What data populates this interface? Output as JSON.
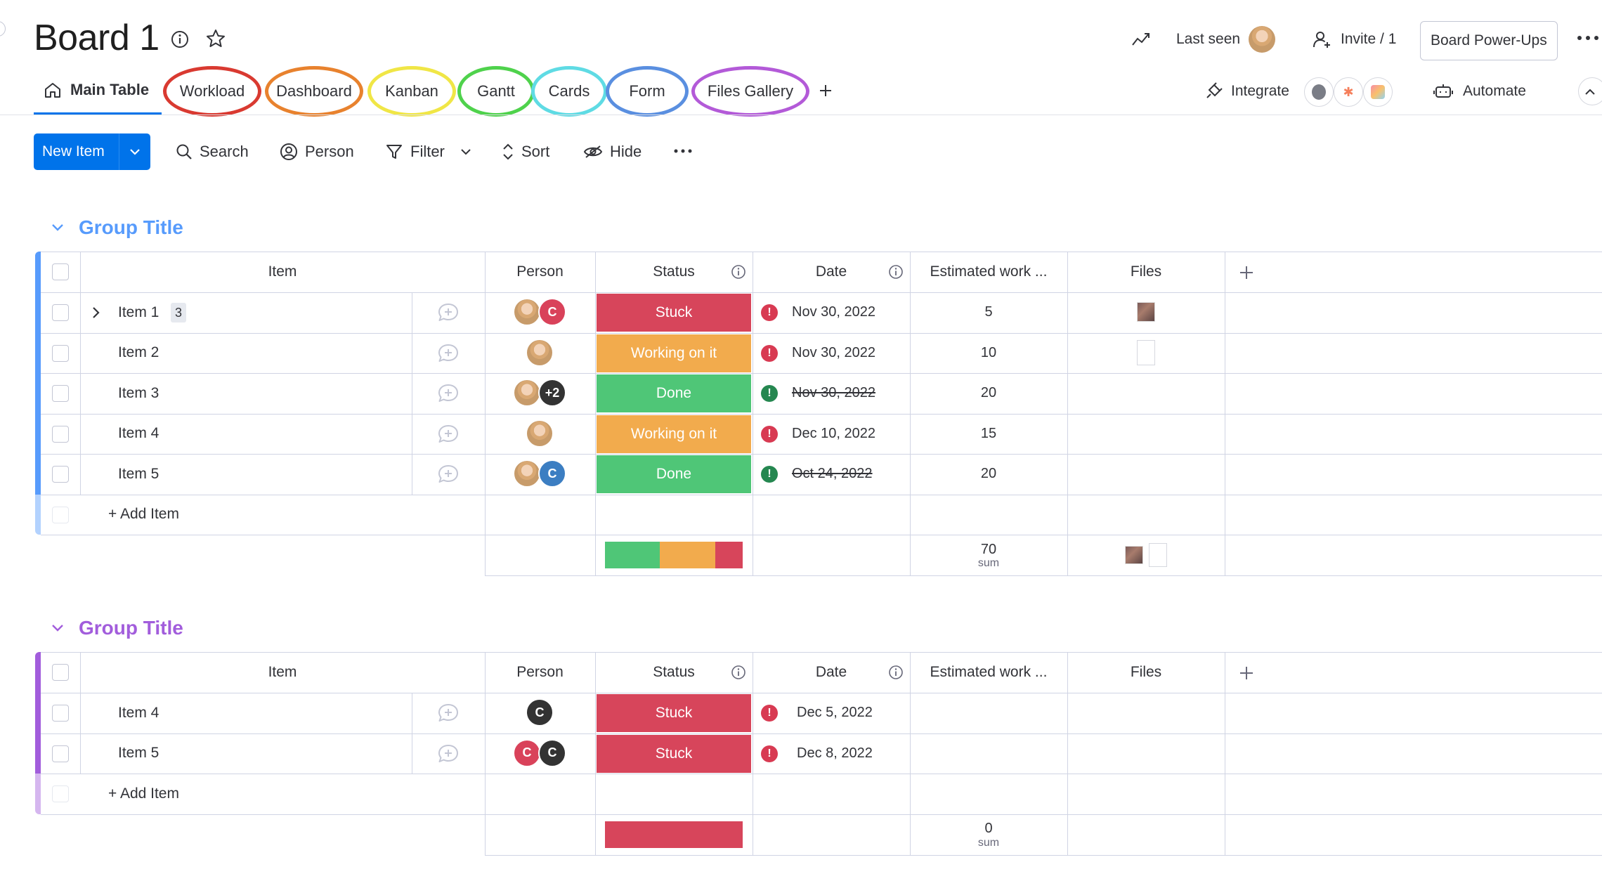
{
  "header": {
    "title": "Board 1",
    "last_seen_label": "Last seen",
    "invite_label": "Invite / 1",
    "power_ups_label": "Board Power-Ups",
    "integrate_label": "Integrate",
    "automate_label": "Automate"
  },
  "tabs": [
    {
      "label": "Main Table",
      "ring": ""
    },
    {
      "label": "Workload",
      "ring": "#d93a31"
    },
    {
      "label": "Dashboard",
      "ring": "#e8822e"
    },
    {
      "label": "Kanban",
      "ring": "#f0e646"
    },
    {
      "label": "Gantt",
      "ring": "#4fd24c"
    },
    {
      "label": "Cards",
      "ring": "#5fdbe4"
    },
    {
      "label": "Form",
      "ring": "#5a8fe0"
    },
    {
      "label": "Files Gallery",
      "ring": "#b35ad8"
    }
  ],
  "toolbar": {
    "new_item_label": "New Item",
    "search_label": "Search",
    "person_label": "Person",
    "filter_label": "Filter",
    "sort_label": "Sort",
    "hide_label": "Hide"
  },
  "columns": {
    "item": "Item",
    "person": "Person",
    "status": "Status",
    "date": "Date",
    "estimated": "Estimated work ...",
    "files": "Files"
  },
  "groups": [
    {
      "title": "Group Title",
      "color": "#579bfc",
      "add_item_label": "+ Add Item",
      "rows": [
        {
          "name": "Item 1",
          "subitems": "3",
          "avatars": [
            {
              "type": "photo",
              "text": ""
            },
            {
              "type": "red",
              "text": "C"
            }
          ],
          "status": "Stuck",
          "status_type": "stuck",
          "date": "Nov 30, 2022",
          "date_icon": "red",
          "date_strike": false,
          "estimate": "5",
          "files": [
            "photo"
          ]
        },
        {
          "name": "Item 2",
          "subitems": "",
          "avatars": [
            {
              "type": "photo",
              "text": ""
            }
          ],
          "status": "Working on it",
          "status_type": "working",
          "date": "Nov 30, 2022",
          "date_icon": "red",
          "date_strike": false,
          "estimate": "10",
          "files": [
            "blank"
          ]
        },
        {
          "name": "Item 3",
          "subitems": "",
          "avatars": [
            {
              "type": "photo",
              "text": ""
            },
            {
              "type": "dark",
              "text": "+2"
            }
          ],
          "status": "Done",
          "status_type": "done",
          "date": "Nov 30, 2022",
          "date_icon": "green",
          "date_strike": true,
          "estimate": "20",
          "files": []
        },
        {
          "name": "Item 4",
          "subitems": "",
          "avatars": [
            {
              "type": "photo",
              "text": ""
            }
          ],
          "status": "Working on it",
          "status_type": "working",
          "date": "Dec 10, 2022",
          "date_icon": "red",
          "date_strike": false,
          "estimate": "15",
          "files": []
        },
        {
          "name": "Item 5",
          "subitems": "",
          "avatars": [
            {
              "type": "photo",
              "text": ""
            },
            {
              "type": "blue",
              "text": "C"
            }
          ],
          "status": "Done",
          "status_type": "done",
          "date": "Oct 24, 2022",
          "date_icon": "green",
          "date_strike": true,
          "estimate": "20",
          "files": []
        }
      ],
      "summary": {
        "sum": "70",
        "sum_label": "sum",
        "status_distribution": [
          {
            "status": "done",
            "fraction": 0.4
          },
          {
            "status": "working",
            "fraction": 0.4
          },
          {
            "status": "stuck",
            "fraction": 0.2
          }
        ],
        "files": [
          "photo",
          "blank"
        ]
      }
    },
    {
      "title": "Group Title",
      "color": "#a25ddc",
      "add_item_label": "+ Add Item",
      "rows": [
        {
          "name": "Item 4",
          "subitems": "",
          "avatars": [
            {
              "type": "dark",
              "text": "C"
            }
          ],
          "status": "Stuck",
          "status_type": "stuck",
          "date": "Dec 5, 2022",
          "date_icon": "red",
          "date_strike": false,
          "estimate": "",
          "files": []
        },
        {
          "name": "Item 5",
          "subitems": "",
          "avatars": [
            {
              "type": "red",
              "text": "C"
            },
            {
              "type": "dark",
              "text": "C"
            }
          ],
          "status": "Stuck",
          "status_type": "stuck",
          "date": "Dec 8, 2022",
          "date_icon": "red",
          "date_strike": false,
          "estimate": "",
          "files": []
        }
      ],
      "summary": {
        "sum": "0",
        "sum_label": "sum",
        "status_distribution": [
          {
            "status": "stuck",
            "fraction": 1.0
          }
        ],
        "files": []
      }
    }
  ]
}
